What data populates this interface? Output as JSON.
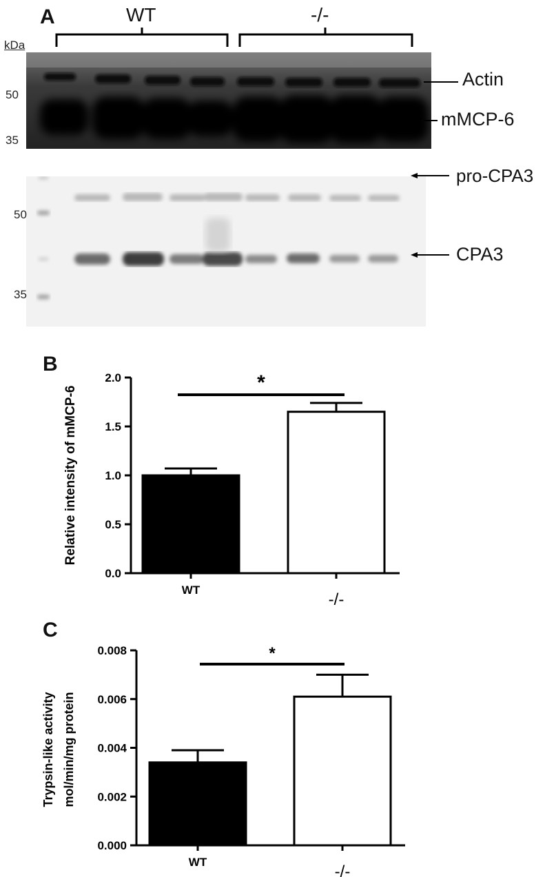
{
  "panel_a": {
    "letter": "A",
    "kda_label": "kDa",
    "group_labels": [
      "WT",
      "-/-"
    ],
    "blot_top": {
      "markers": [
        "50",
        "35"
      ],
      "band_labels": [
        "Actin",
        "mMCP-6"
      ]
    },
    "blot_bottom": {
      "markers": [
        "50",
        "35"
      ],
      "band_labels": [
        "pro-CPA3",
        "CPA3"
      ]
    }
  },
  "chart_data": [
    {
      "panel": "B",
      "type": "bar",
      "categories": [
        "WT",
        "-/-"
      ],
      "values": [
        1.0,
        1.65
      ],
      "errors": [
        0.07,
        0.09
      ],
      "ylabel": "Relative intensity of mMCP-6",
      "ylim": [
        0,
        2.0
      ],
      "yticks": [
        "0.0",
        "0.5",
        "1.0",
        "1.5",
        "2.0"
      ],
      "colors": [
        "#000000",
        "#ffffff"
      ],
      "significance": "*"
    },
    {
      "panel": "C",
      "type": "bar",
      "categories": [
        "WT",
        "-/-"
      ],
      "values": [
        0.0034,
        0.0061
      ],
      "errors": [
        0.0005,
        0.0009
      ],
      "ylabel_lines": [
        "Trypsin-like activity",
        "mol/min/mg protein"
      ],
      "ylim": [
        0,
        0.008
      ],
      "yticks": [
        "0.000",
        "0.002",
        "0.004",
        "0.006",
        "0.008"
      ],
      "colors": [
        "#000000",
        "#ffffff"
      ],
      "significance": "*"
    }
  ]
}
